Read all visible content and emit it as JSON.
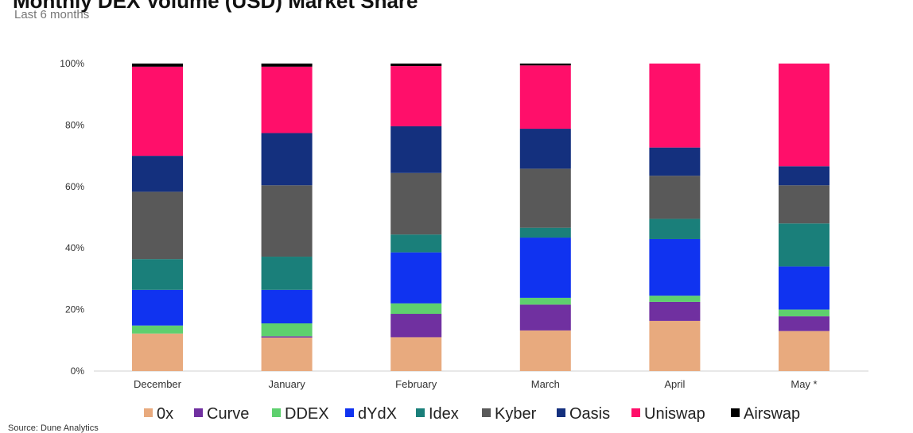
{
  "chart_data": {
    "type": "bar",
    "stacked": true,
    "title": "Monthly DEX Volume (USD) Market Share",
    "subtitle": "Last 6 months",
    "categories": [
      "December",
      "January",
      "February",
      "March",
      "April",
      "May *"
    ],
    "ylim": [
      0,
      100
    ],
    "yticks": [
      "0%",
      "20%",
      "40%",
      "60%",
      "80%",
      "100%"
    ],
    "legend_position": "bottom",
    "grid": false,
    "series": [
      {
        "name": "0x",
        "color": "#e8aa7e",
        "values": [
          12.2,
          10.9,
          11.0,
          13.2,
          16.3,
          13.0
        ]
      },
      {
        "name": "Curve",
        "color": "#7030a0",
        "values": [
          0.0,
          0.4,
          7.6,
          8.4,
          6.2,
          4.8
        ]
      },
      {
        "name": "DDEX",
        "color": "#5ed06e",
        "values": [
          2.6,
          4.2,
          3.4,
          2.2,
          2.0,
          2.2
        ]
      },
      {
        "name": "dYdX",
        "color": "#1033f0",
        "values": [
          11.6,
          10.9,
          16.6,
          19.6,
          18.4,
          14.0
        ]
      },
      {
        "name": "Idex",
        "color": "#1a7f7a",
        "values": [
          10.0,
          10.8,
          5.8,
          3.2,
          6.6,
          14.0
        ]
      },
      {
        "name": "Kyber",
        "color": "#595959",
        "values": [
          21.9,
          23.2,
          20.0,
          19.2,
          14.0,
          12.4
        ]
      },
      {
        "name": "Oasis",
        "color": "#14307e",
        "values": [
          11.7,
          17.0,
          15.2,
          13.0,
          9.2,
          6.2
        ]
      },
      {
        "name": "Uniswap",
        "color": "#ff0f6a",
        "values": [
          29.0,
          21.6,
          19.6,
          20.6,
          27.3,
          33.4
        ]
      },
      {
        "name": "Airswap",
        "color": "#000000",
        "values": [
          1.0,
          1.0,
          0.8,
          0.6,
          0.0,
          0.0
        ]
      }
    ]
  },
  "source": "Source: Dune Analytics"
}
